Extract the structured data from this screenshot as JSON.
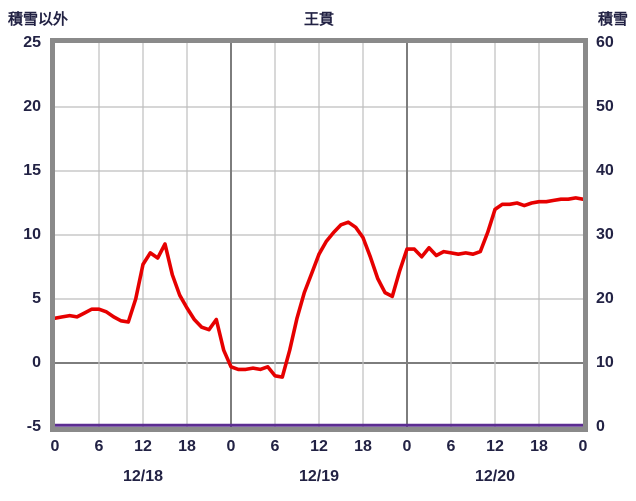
{
  "chart_data": {
    "type": "line",
    "title": "王貫",
    "left_axis": {
      "label": "積雪以外",
      "min": -5,
      "max": 25,
      "ticks": [
        25,
        20,
        15,
        10,
        5,
        0,
        -5
      ]
    },
    "right_axis": {
      "label": "積雪",
      "min": 0,
      "max": 60,
      "ticks": [
        60,
        50,
        40,
        30,
        20,
        10,
        0
      ]
    },
    "x_axis": {
      "hours_total": 72,
      "tick_interval": 6,
      "tick_labels": [
        "0",
        "6",
        "12",
        "18",
        "0",
        "6",
        "12",
        "18",
        "0",
        "6",
        "12",
        "18",
        "0"
      ],
      "day_labels": [
        "12/18",
        "12/19",
        "12/20"
      ]
    },
    "series": [
      {
        "name": "積雪以外",
        "axis": "left",
        "color": "#e60000",
        "values": [
          3.5,
          3.6,
          3.7,
          3.6,
          3.9,
          4.2,
          4.2,
          4.0,
          3.6,
          3.3,
          3.2,
          5.0,
          7.7,
          8.6,
          8.2,
          9.3,
          6.9,
          5.3,
          4.3,
          3.4,
          2.8,
          2.6,
          3.4,
          1.0,
          -0.3,
          -0.5,
          -0.5,
          -0.4,
          -0.5,
          -0.3,
          -1.0,
          -1.1,
          1.0,
          3.5,
          5.5,
          7.0,
          8.5,
          9.5,
          10.2,
          10.8,
          11.0,
          10.6,
          9.8,
          8.3,
          6.6,
          5.5,
          5.2,
          7.2,
          8.9,
          8.9,
          8.3,
          9.0,
          8.4,
          8.7,
          8.6,
          8.5,
          8.6,
          8.5,
          8.7,
          10.2,
          12.0,
          12.4,
          12.4,
          12.5,
          12.3,
          12.5,
          12.6,
          12.6,
          12.7,
          12.8,
          12.8,
          12.9,
          12.8
        ]
      },
      {
        "name": "積雪",
        "axis": "right",
        "color": "#5c2d91",
        "constant_value": 0
      }
    ],
    "grid": {
      "on": true
    }
  }
}
